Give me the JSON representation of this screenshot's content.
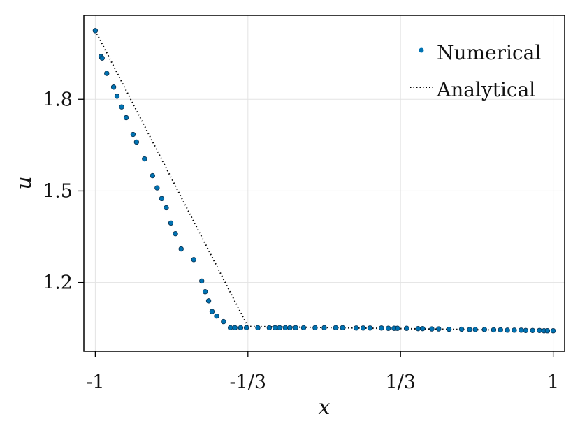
{
  "chart_data": {
    "type": "line",
    "xlabel": "x",
    "ylabel": "u",
    "xlim": [
      -1.05,
      1.05
    ],
    "ylim": [
      0.975,
      2.075
    ],
    "x_ticks": [
      {
        "value": -1,
        "label": "-1"
      },
      {
        "value": -0.3333,
        "label": "-1/3"
      },
      {
        "value": 0.3333,
        "label": "1/3"
      },
      {
        "value": 1,
        "label": "1"
      }
    ],
    "y_ticks": [
      {
        "value": 1.2,
        "label": "1.2"
      },
      {
        "value": 1.5,
        "label": "1.5"
      },
      {
        "value": 1.8,
        "label": "1.8"
      }
    ],
    "grid": true,
    "legend_position": "top-right",
    "colors": {
      "numerical": "#0072B2",
      "analytical": "#000000"
    },
    "series": [
      {
        "name": "Numerical",
        "style": "scatter",
        "points": [
          [
            -1.0,
            2.025
          ],
          [
            -0.975,
            1.94
          ],
          [
            -0.97,
            1.935
          ],
          [
            -0.95,
            1.885
          ],
          [
            -0.92,
            1.84
          ],
          [
            -0.905,
            1.81
          ],
          [
            -0.885,
            1.775
          ],
          [
            -0.865,
            1.74
          ],
          [
            -0.835,
            1.685
          ],
          [
            -0.82,
            1.66
          ],
          [
            -0.785,
            1.605
          ],
          [
            -0.75,
            1.55
          ],
          [
            -0.73,
            1.51
          ],
          [
            -0.71,
            1.475
          ],
          [
            -0.69,
            1.445
          ],
          [
            -0.67,
            1.395
          ],
          [
            -0.65,
            1.36
          ],
          [
            -0.625,
            1.31
          ],
          [
            -0.57,
            1.275
          ],
          [
            -0.535,
            1.205
          ],
          [
            -0.52,
            1.17
          ],
          [
            -0.505,
            1.14
          ],
          [
            -0.49,
            1.105
          ],
          [
            -0.47,
            1.09
          ],
          [
            -0.44,
            1.072
          ],
          [
            -0.41,
            1.052
          ],
          [
            -0.39,
            1.052
          ],
          [
            -0.365,
            1.052
          ],
          [
            -0.34,
            1.052
          ],
          [
            -0.29,
            1.052
          ],
          [
            -0.24,
            1.052
          ],
          [
            -0.215,
            1.052
          ],
          [
            -0.195,
            1.052
          ],
          [
            -0.17,
            1.052
          ],
          [
            -0.15,
            1.052
          ],
          [
            -0.125,
            1.052
          ],
          [
            -0.09,
            1.052
          ],
          [
            -0.04,
            1.052
          ],
          [
            0.0,
            1.052
          ],
          [
            0.05,
            1.052
          ],
          [
            0.08,
            1.052
          ],
          [
            0.14,
            1.051
          ],
          [
            0.17,
            1.051
          ],
          [
            0.2,
            1.051
          ],
          [
            0.25,
            1.051
          ],
          [
            0.28,
            1.05
          ],
          [
            0.305,
            1.05
          ],
          [
            0.32,
            1.05
          ],
          [
            0.36,
            1.05
          ],
          [
            0.41,
            1.049
          ],
          [
            0.43,
            1.049
          ],
          [
            0.47,
            1.048
          ],
          [
            0.5,
            1.048
          ],
          [
            0.545,
            1.047
          ],
          [
            0.6,
            1.047
          ],
          [
            0.635,
            1.046
          ],
          [
            0.66,
            1.046
          ],
          [
            0.7,
            1.046
          ],
          [
            0.74,
            1.045
          ],
          [
            0.77,
            1.045
          ],
          [
            0.8,
            1.044
          ],
          [
            0.83,
            1.044
          ],
          [
            0.86,
            1.044
          ],
          [
            0.88,
            1.043
          ],
          [
            0.91,
            1.043
          ],
          [
            0.94,
            1.043
          ],
          [
            0.96,
            1.042
          ],
          [
            0.975,
            1.042
          ],
          [
            1.0,
            1.042
          ]
        ]
      },
      {
        "name": "Analytical",
        "style": "dotted-line",
        "points": [
          [
            -1.0,
            2.025
          ],
          [
            -0.3333,
            1.056
          ],
          [
            1.0,
            1.042
          ]
        ]
      }
    ]
  }
}
